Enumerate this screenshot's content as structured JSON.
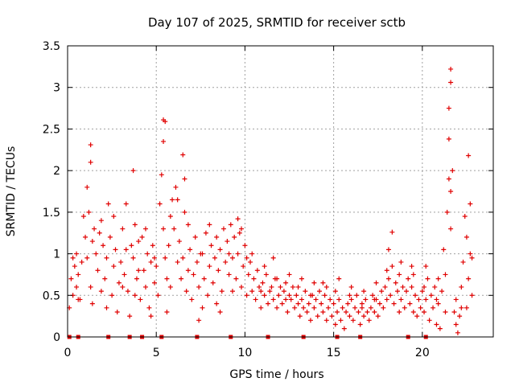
{
  "chart_data": {
    "type": "scatter",
    "title": "Day 107 of 2025, SRMTID for receiver sctb",
    "xlabel": "GPS time / hours",
    "ylabel": "SRMTID / TECUs",
    "xlim": [
      0,
      24
    ],
    "ylim": [
      0,
      3.5
    ],
    "grid": true,
    "marker": "+",
    "color": "#e00000",
    "xticks": [
      0,
      5,
      10,
      15,
      20
    ],
    "xtick_labels": [
      "0",
      "5",
      "10",
      "15",
      "20"
    ],
    "yticks": [
      0,
      0.5,
      1,
      1.5,
      2,
      2.5,
      3,
      3.5
    ],
    "ytick_labels": [
      "0",
      "0.5",
      "1",
      "1.5",
      "2",
      "2.5",
      "3",
      "3.5"
    ],
    "zero_markers_x": [
      0.1,
      0.6,
      2.3,
      3.5,
      4.2,
      5.3,
      7.3,
      9.2,
      11.3,
      13.3,
      15.2,
      16.5,
      19.2,
      20.2
    ],
    "notable_points": [
      {
        "x": 21.6,
        "y": 3.22
      },
      {
        "x": 21.6,
        "y": 3.06
      },
      {
        "x": 21.5,
        "y": 2.75
      },
      {
        "x": 5.4,
        "y": 2.61
      },
      {
        "x": 5.5,
        "y": 2.59
      },
      {
        "x": 21.5,
        "y": 2.38
      },
      {
        "x": 1.3,
        "y": 2.31
      },
      {
        "x": 5.4,
        "y": 2.35
      },
      {
        "x": 6.5,
        "y": 2.19
      },
      {
        "x": 3.7,
        "y": 2.0
      },
      {
        "x": 22.6,
        "y": 2.18
      },
      {
        "x": 1.3,
        "y": 2.1
      },
      {
        "x": 9.6,
        "y": 1.42
      },
      {
        "x": 18.3,
        "y": 1.26
      }
    ],
    "points": [
      [
        0.1,
        0.35
      ],
      [
        0.2,
        0.7
      ],
      [
        0.3,
        0.5
      ],
      [
        0.4,
        0.85
      ],
      [
        0.5,
        0.6
      ],
      [
        0.6,
        0.75
      ],
      [
        0.7,
        0.45
      ],
      [
        0.8,
        0.9
      ],
      [
        0.9,
        1.45
      ],
      [
        1.0,
        1.2
      ],
      [
        1.1,
        0.95
      ],
      [
        1.2,
        1.5
      ],
      [
        1.3,
        0.6
      ],
      [
        1.4,
        0.4
      ],
      [
        1.5,
        1.3
      ],
      [
        1.6,
        1.0
      ],
      [
        1.7,
        0.8
      ],
      [
        1.8,
        1.25
      ],
      [
        1.9,
        1.4
      ],
      [
        2.0,
        1.1
      ],
      [
        2.1,
        0.7
      ],
      [
        2.2,
        0.95
      ],
      [
        2.3,
        1.6
      ],
      [
        2.4,
        1.2
      ],
      [
        2.5,
        0.5
      ],
      [
        2.6,
        0.85
      ],
      [
        2.7,
        1.05
      ],
      [
        2.8,
        0.3
      ],
      [
        2.9,
        0.65
      ],
      [
        3.0,
        0.9
      ],
      [
        3.1,
        1.3
      ],
      [
        3.2,
        0.75
      ],
      [
        3.3,
        1.05
      ],
      [
        3.4,
        0.55
      ],
      [
        3.5,
        0.25
      ],
      [
        3.6,
        1.1
      ],
      [
        3.7,
        0.95
      ],
      [
        3.8,
        1.35
      ],
      [
        3.9,
        0.7
      ],
      [
        4.0,
        1.15
      ],
      [
        4.1,
        0.45
      ],
      [
        4.2,
        1.2
      ],
      [
        4.3,
        0.8
      ],
      [
        4.4,
        0.6
      ],
      [
        4.5,
        1.0
      ],
      [
        4.6,
        0.35
      ],
      [
        4.7,
        0.9
      ],
      [
        4.8,
        1.1
      ],
      [
        4.9,
        0.65
      ],
      [
        5.0,
        0.85
      ],
      [
        5.1,
        0.5
      ],
      [
        5.2,
        1.6
      ],
      [
        5.3,
        1.95
      ],
      [
        5.4,
        1.3
      ],
      [
        5.5,
        0.95
      ],
      [
        5.6,
        0.7
      ],
      [
        5.7,
        1.1
      ],
      [
        5.8,
        1.45
      ],
      [
        5.9,
        1.65
      ],
      [
        6.0,
        1.3
      ],
      [
        6.1,
        1.8
      ],
      [
        6.2,
        0.9
      ],
      [
        6.3,
        1.15
      ],
      [
        6.4,
        0.7
      ],
      [
        6.5,
        0.95
      ],
      [
        6.6,
        1.5
      ],
      [
        6.7,
        0.55
      ],
      [
        6.8,
        0.8
      ],
      [
        6.9,
        1.05
      ],
      [
        7.0,
        0.45
      ],
      [
        7.1,
        0.75
      ],
      [
        7.2,
        1.2
      ],
      [
        7.3,
        0.9
      ],
      [
        7.4,
        0.6
      ],
      [
        7.5,
        1.0
      ],
      [
        7.6,
        0.35
      ],
      [
        7.7,
        0.7
      ],
      [
        7.8,
        1.25
      ],
      [
        7.9,
        0.5
      ],
      [
        8.0,
        0.85
      ],
      [
        8.1,
        1.1
      ],
      [
        8.2,
        0.65
      ],
      [
        8.3,
        0.95
      ],
      [
        8.4,
        0.4
      ],
      [
        8.5,
        0.8
      ],
      [
        8.6,
        1.05
      ],
      [
        8.7,
        0.55
      ],
      [
        8.8,
        1.3
      ],
      [
        8.9,
        0.9
      ],
      [
        9.0,
        1.15
      ],
      [
        9.1,
        0.75
      ],
      [
        9.2,
        1.35
      ],
      [
        9.3,
        0.95
      ],
      [
        9.4,
        1.2
      ],
      [
        9.5,
        0.7
      ],
      [
        9.6,
        1.0
      ],
      [
        9.7,
        1.25
      ],
      [
        9.8,
        0.6
      ],
      [
        9.9,
        0.85
      ],
      [
        10.0,
        1.1
      ],
      [
        10.1,
        0.5
      ],
      [
        10.2,
        0.75
      ],
      [
        10.3,
        0.9
      ],
      [
        10.4,
        0.55
      ],
      [
        10.5,
        0.7
      ],
      [
        10.6,
        0.45
      ],
      [
        10.7,
        0.8
      ],
      [
        10.8,
        0.6
      ],
      [
        10.9,
        0.35
      ],
      [
        11.0,
        0.65
      ],
      [
        11.1,
        0.5
      ],
      [
        11.2,
        0.75
      ],
      [
        11.3,
        0.4
      ],
      [
        11.4,
        0.55
      ],
      [
        11.5,
        0.6
      ],
      [
        11.6,
        0.45
      ],
      [
        11.7,
        0.7
      ],
      [
        11.8,
        0.35
      ],
      [
        11.9,
        0.5
      ],
      [
        12.0,
        0.6
      ],
      [
        12.1,
        0.4
      ],
      [
        12.2,
        0.55
      ],
      [
        12.3,
        0.65
      ],
      [
        12.4,
        0.3
      ],
      [
        12.5,
        0.5
      ],
      [
        12.6,
        0.45
      ],
      [
        12.7,
        0.6
      ],
      [
        12.8,
        0.35
      ],
      [
        12.9,
        0.5
      ],
      [
        13.0,
        0.4
      ],
      [
        13.1,
        0.25
      ],
      [
        13.2,
        0.45
      ],
      [
        13.3,
        0.35
      ],
      [
        13.4,
        0.55
      ],
      [
        13.5,
        0.3
      ],
      [
        13.6,
        0.4
      ],
      [
        13.7,
        0.2
      ],
      [
        13.8,
        0.5
      ],
      [
        13.9,
        0.35
      ],
      [
        14.0,
        0.45
      ],
      [
        14.1,
        0.25
      ],
      [
        14.2,
        0.55
      ],
      [
        14.3,
        0.4
      ],
      [
        14.4,
        0.3
      ],
      [
        14.5,
        0.5
      ],
      [
        14.6,
        0.2
      ],
      [
        14.7,
        0.35
      ],
      [
        14.8,
        0.45
      ],
      [
        14.9,
        0.25
      ],
      [
        15.0,
        0.4
      ],
      [
        15.1,
        0.15
      ],
      [
        15.2,
        0.3
      ],
      [
        15.3,
        0.45
      ],
      [
        15.4,
        0.2
      ],
      [
        15.5,
        0.35
      ],
      [
        15.6,
        0.1
      ],
      [
        15.7,
        0.3
      ],
      [
        15.8,
        0.4
      ],
      [
        15.9,
        0.25
      ],
      [
        16.0,
        0.45
      ],
      [
        16.1,
        0.2
      ],
      [
        16.2,
        0.35
      ],
      [
        16.3,
        0.5
      ],
      [
        16.4,
        0.3
      ],
      [
        16.5,
        0.15
      ],
      [
        16.6,
        0.4
      ],
      [
        16.7,
        0.25
      ],
      [
        16.8,
        0.45
      ],
      [
        16.9,
        0.3
      ],
      [
        17.0,
        0.2
      ],
      [
        17.1,
        0.35
      ],
      [
        17.2,
        0.5
      ],
      [
        17.3,
        0.3
      ],
      [
        17.4,
        0.45
      ],
      [
        17.5,
        0.25
      ],
      [
        17.6,
        0.4
      ],
      [
        17.7,
        0.55
      ],
      [
        17.8,
        0.35
      ],
      [
        17.9,
        0.6
      ],
      [
        18.0,
        0.45
      ],
      [
        18.1,
        0.7
      ],
      [
        18.2,
        0.5
      ],
      [
        18.3,
        0.85
      ],
      [
        18.4,
        0.4
      ],
      [
        18.5,
        0.65
      ],
      [
        18.6,
        0.55
      ],
      [
        18.7,
        0.75
      ],
      [
        18.8,
        0.45
      ],
      [
        18.9,
        0.6
      ],
      [
        19.0,
        0.35
      ],
      [
        19.1,
        0.55
      ],
      [
        19.2,
        0.7
      ],
      [
        19.3,
        0.4
      ],
      [
        19.4,
        0.6
      ],
      [
        19.5,
        0.3
      ],
      [
        19.6,
        0.5
      ],
      [
        19.7,
        0.25
      ],
      [
        19.8,
        0.45
      ],
      [
        19.9,
        0.35
      ],
      [
        20.0,
        0.55
      ],
      [
        20.1,
        0.3
      ],
      [
        20.2,
        0.45
      ],
      [
        20.3,
        0.7
      ],
      [
        20.4,
        0.2
      ],
      [
        20.5,
        0.5
      ],
      [
        20.6,
        0.35
      ],
      [
        20.7,
        0.6
      ],
      [
        20.8,
        0.15
      ],
      [
        20.9,
        0.4
      ],
      [
        21.0,
        0.1
      ],
      [
        21.1,
        0.55
      ],
      [
        21.2,
        1.05
      ],
      [
        21.3,
        0.75
      ],
      [
        21.4,
        1.5
      ],
      [
        21.5,
        1.9
      ],
      [
        21.6,
        1.3
      ],
      [
        21.7,
        2.0
      ],
      [
        21.8,
        0.3
      ],
      [
        21.9,
        0.15
      ],
      [
        22.0,
        0.05
      ],
      [
        22.1,
        0.25
      ],
      [
        22.2,
        0.6
      ],
      [
        22.3,
        0.9
      ],
      [
        22.4,
        1.45
      ],
      [
        22.5,
        1.2
      ],
      [
        22.6,
        0.7
      ],
      [
        22.7,
        1.6
      ],
      [
        22.8,
        0.5
      ],
      [
        0.3,
        0.95
      ],
      [
        0.6,
        0.45
      ],
      [
        1.1,
        1.8
      ],
      [
        1.9,
        0.55
      ],
      [
        2.6,
        1.45
      ],
      [
        3.3,
        1.6
      ],
      [
        3.8,
        0.5
      ],
      [
        4.4,
        1.3
      ],
      [
        4.7,
        0.25
      ],
      [
        5.6,
        0.3
      ],
      [
        6.2,
        1.65
      ],
      [
        6.8,
        1.35
      ],
      [
        7.4,
        0.2
      ],
      [
        8.0,
        1.35
      ],
      [
        8.6,
        0.3
      ],
      [
        9.1,
        1.0
      ],
      [
        9.8,
        1.3
      ],
      [
        10.4,
        1.0
      ],
      [
        11.1,
        0.85
      ],
      [
        11.8,
        0.7
      ],
      [
        12.5,
        0.75
      ],
      [
        13.2,
        0.7
      ],
      [
        13.9,
        0.65
      ],
      [
        14.6,
        0.6
      ],
      [
        15.3,
        0.7
      ],
      [
        16.0,
        0.6
      ],
      [
        16.7,
        0.55
      ],
      [
        17.4,
        0.65
      ],
      [
        18.1,
        1.05
      ],
      [
        18.8,
        0.9
      ],
      [
        19.5,
        0.75
      ],
      [
        20.2,
        0.85
      ],
      [
        20.9,
        0.7
      ],
      [
        21.3,
        0.3
      ],
      [
        21.9,
        0.45
      ],
      [
        22.5,
        0.35
      ],
      [
        22.8,
        0.95
      ],
      [
        0.5,
        1.0
      ],
      [
        1.4,
        1.15
      ],
      [
        2.2,
        0.35
      ],
      [
        3.1,
        0.6
      ],
      [
        4.0,
        0.8
      ],
      [
        4.9,
        0.95
      ],
      [
        5.8,
        0.6
      ],
      [
        6.6,
        1.9
      ],
      [
        7.6,
        1.0
      ],
      [
        8.4,
        1.2
      ],
      [
        9.3,
        0.55
      ],
      [
        10.1,
        0.95
      ],
      [
        10.9,
        0.55
      ],
      [
        11.6,
        0.95
      ],
      [
        12.3,
        0.45
      ],
      [
        13.0,
        0.6
      ],
      [
        13.7,
        0.5
      ],
      [
        14.4,
        0.65
      ],
      [
        15.1,
        0.55
      ],
      [
        15.9,
        0.5
      ],
      [
        16.6,
        0.35
      ],
      [
        17.3,
        0.45
      ],
      [
        18.0,
        0.8
      ],
      [
        18.7,
        0.3
      ],
      [
        19.4,
        0.85
      ],
      [
        20.1,
        0.6
      ],
      [
        20.8,
        0.45
      ],
      [
        21.6,
        1.75
      ],
      [
        22.2,
        0.35
      ],
      [
        22.7,
        1.0
      ]
    ]
  }
}
